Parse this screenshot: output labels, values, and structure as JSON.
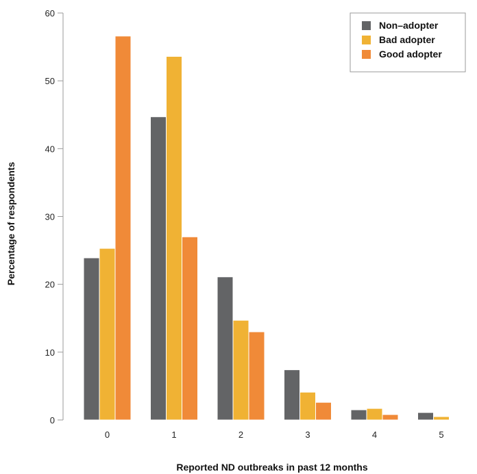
{
  "chart_data": {
    "type": "bar",
    "title": "",
    "xlabel": "Reported ND outbreaks in past 12 months",
    "ylabel": "Percentage of respondents",
    "categories": [
      "0",
      "1",
      "2",
      "3",
      "4",
      "5"
    ],
    "ylim": [
      0,
      60
    ],
    "yticks": [
      0,
      10,
      20,
      30,
      40,
      50,
      60
    ],
    "grid": false,
    "legend_position": "top-right",
    "series": [
      {
        "name": "Non–adopter",
        "color": "#636466",
        "values": [
          23.9,
          44.7,
          21.1,
          7.4,
          1.5,
          1.1
        ]
      },
      {
        "name": "Bad adopter",
        "color": "#f0b234",
        "values": [
          25.3,
          53.6,
          14.7,
          4.1,
          1.7,
          0.5
        ]
      },
      {
        "name": "Good adopter",
        "color": "#f08a38",
        "values": [
          56.6,
          27.0,
          13.0,
          2.6,
          0.8,
          null
        ]
      }
    ]
  }
}
